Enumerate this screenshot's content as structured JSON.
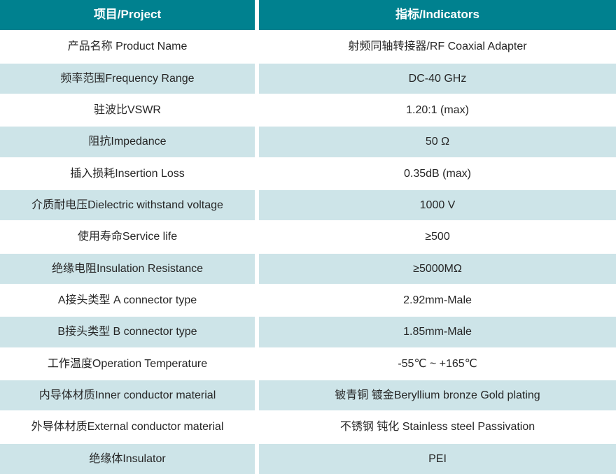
{
  "colors": {
    "header_bg": "#00818F",
    "alt_row_bg": "#CDE4E8",
    "row_bg": "#FFFFFF",
    "header_text": "#FFFFFF",
    "body_text": "#262626"
  },
  "table": {
    "header": {
      "project": "项目/Project",
      "indicators": "指标/Indicators"
    },
    "rows": [
      {
        "project": "产品名称 Product Name",
        "indicator": "射频同轴转接器/RF Coaxial Adapter"
      },
      {
        "project": "频率范围Frequency Range",
        "indicator": "DC-40 GHz"
      },
      {
        "project": "驻波比VSWR",
        "indicator": "1.20:1 (max)"
      },
      {
        "project": "阻抗Impedance",
        "indicator": "50 Ω"
      },
      {
        "project": "插入损耗Insertion Loss",
        "indicator": "0.35dB (max)"
      },
      {
        "project": "介质耐电压Dielectric withstand voltage",
        "indicator": "1000 V"
      },
      {
        "project": "使用寿命Service life",
        "indicator": "≥500"
      },
      {
        "project": "绝缘电阻Insulation Resistance",
        "indicator": "≥5000MΩ"
      },
      {
        "project": "A接头类型 A connector type",
        "indicator": "2.92mm-Male"
      },
      {
        "project": "B接头类型 B connector type",
        "indicator": "1.85mm-Male"
      },
      {
        "project": "工作温度Operation Temperature",
        "indicator": "-55℃ ~ +165℃"
      },
      {
        "project": "内导体材质Inner conductor material",
        "indicator": "铍青铜 镀金Beryllium bronze Gold plating"
      },
      {
        "project": "外导体材质External conductor material",
        "indicator": "不锈钢 钝化 Stainless steel Passivation"
      },
      {
        "project": "绝缘体Insulator",
        "indicator": "PEI"
      }
    ]
  }
}
